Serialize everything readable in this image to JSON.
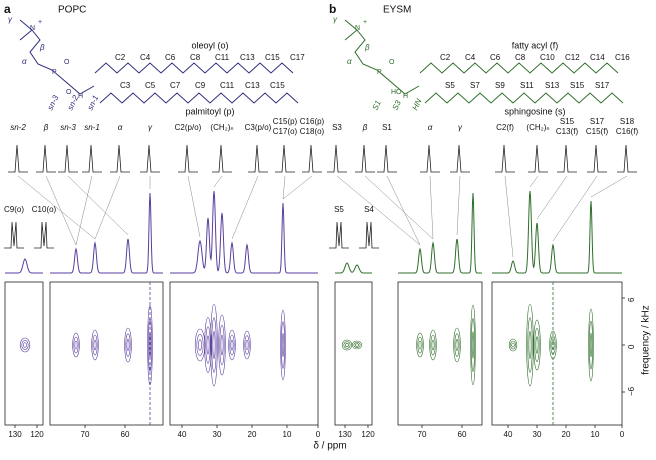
{
  "panels": [
    {
      "label": "a",
      "name": "POPC",
      "headgroup": [
        "γ",
        "β",
        "α",
        "sn-3",
        "sn-2",
        "sn-1"
      ],
      "atoms": [
        "N",
        "+",
        "P",
        "O",
        "O",
        "H"
      ],
      "chain1_name": "oleoyl (o)",
      "chain1_carbons": [
        "C2",
        "C4",
        "C6",
        "C8",
        "C11",
        "C13",
        "C15",
        "C17"
      ],
      "chain2_name": "palmitoyl (p)",
      "chain2_carbons": [
        "C3",
        "C5",
        "C7",
        "C9",
        "C11",
        "C13",
        "C15"
      ],
      "peak_labels": [
        [
          "sn-2"
        ],
        [
          "β"
        ],
        [
          "sn-3"
        ],
        [
          "sn-1"
        ],
        [
          "α"
        ],
        [
          "γ"
        ],
        [
          "C2(p/o)"
        ],
        [
          "(CH₂)ₙ"
        ],
        [
          "C3(p/o)"
        ],
        [
          "C15(p)",
          "C17(o)"
        ],
        [
          "C16(p)",
          "C18(o)"
        ]
      ],
      "inset_labels": [
        "C9(o)",
        "C10(o)"
      ],
      "xticks": [
        [
          "130",
          "120"
        ],
        [
          "70",
          "60"
        ],
        [
          "40",
          "30",
          "20",
          "10",
          "0"
        ]
      ]
    },
    {
      "label": "b",
      "name": "EYSM",
      "headgroup": [
        "γ",
        "β",
        "α",
        "S1",
        "S3",
        "HN"
      ],
      "atoms": [
        "N",
        "+",
        "P",
        "O",
        "HO",
        "H"
      ],
      "chain1_name": "fatty acyl (f)",
      "chain1_carbons": [
        "C2",
        "C4",
        "C6",
        "C8",
        "C10",
        "C12",
        "C14",
        "C16"
      ],
      "chain2_name": "sphingosine (s)",
      "chain2_carbons": [
        "S5",
        "S7",
        "S9",
        "S11",
        "S13",
        "S15",
        "S17"
      ],
      "peak_labels": [
        [
          "S3"
        ],
        [
          "β"
        ],
        [
          "S1"
        ],
        [
          "α"
        ],
        [
          "γ"
        ],
        [
          "C2(f)"
        ],
        [
          "(CH₂)ₙ"
        ],
        [
          "S15",
          "C13(f)"
        ],
        [
          "S17",
          "C15(f)"
        ],
        [
          "S18",
          "C16(f)"
        ]
      ],
      "inset_labels": [
        "S5",
        "S4"
      ],
      "xticks": [
        [
          "130",
          "120"
        ],
        [
          "70",
          "60"
        ],
        [
          "40",
          "30",
          "20",
          "10",
          "0"
        ]
      ]
    }
  ],
  "yticks": [
    "6",
    "0",
    "−6"
  ],
  "ylabel": "frequency / kHz",
  "xlabel": "δ / ppm"
}
